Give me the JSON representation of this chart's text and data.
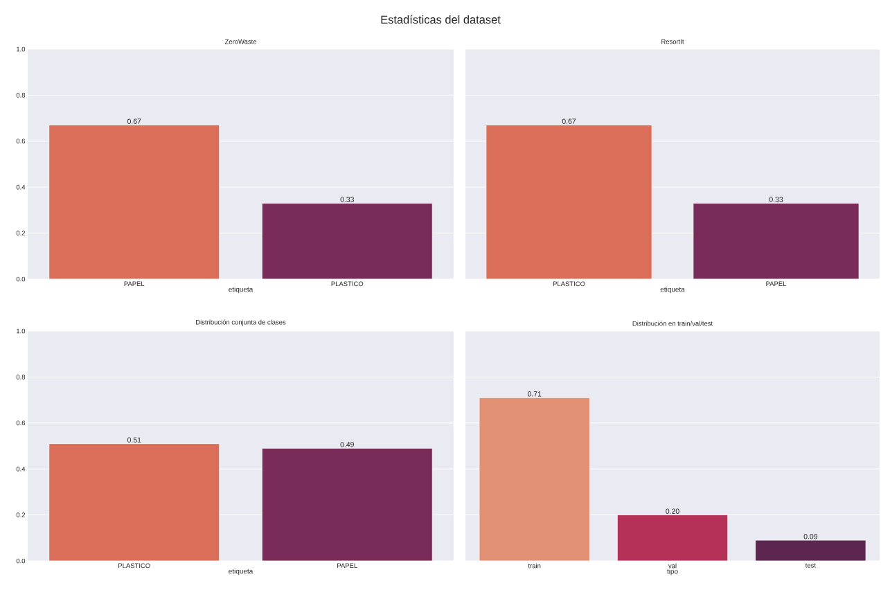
{
  "chart_data": [
    {
      "type": "bar",
      "title": "ZeroWaste",
      "xlabel": "etiqueta",
      "categories": [
        "PAPEL",
        "PLASTICO"
      ],
      "values": [
        0.67,
        0.33
      ],
      "colors": [
        "#db6e59",
        "#782c57"
      ],
      "value_labels": [
        "0.67",
        "0.33"
      ],
      "ylim": [
        0,
        1
      ],
      "yticks": [
        {
          "value": 0,
          "label": "0.0"
        },
        {
          "value": 0.2,
          "label": "0.2"
        },
        {
          "value": 0.4,
          "label": "0.4"
        },
        {
          "value": 0.6,
          "label": "0.6"
        },
        {
          "value": 0.8,
          "label": "0.8"
        },
        {
          "value": 1,
          "label": "1.0"
        }
      ],
      "grid": "y",
      "annotations": [
        "Estadísticas del dataset"
      ]
    },
    {
      "type": "bar",
      "title": "ResortIt",
      "xlabel": "etiqueta",
      "categories": [
        "PLASTICO",
        "PAPEL"
      ],
      "values": [
        0.67,
        0.33
      ],
      "colors": [
        "#db6e59",
        "#782c57"
      ],
      "value_labels": [
        "0.67",
        "0.33"
      ],
      "ylim": [
        0,
        1
      ],
      "yticks": [
        0,
        0.2,
        0.4,
        0.6,
        0.8,
        1
      ],
      "grid": "y",
      "tick_labels": "x"
    },
    {
      "type": "bar",
      "title": "Distribución conjunta de clases",
      "xlabel": "etiqueta",
      "categories": [
        "PLASTICO",
        "PAPEL"
      ],
      "values": [
        0.51,
        0.49
      ],
      "colors": [
        "#db6e59",
        "#782c57"
      ],
      "value_labels": [
        "0.51",
        "0.49"
      ],
      "ylim": [
        0,
        1
      ],
      "yticks": [
        {
          "value": 0,
          "label": "0.0"
        },
        {
          "value": 0.2,
          "label": "0.2"
        },
        {
          "value": 0.4,
          "label": "0.4"
        },
        {
          "value": 0.6,
          "label": "0.6"
        },
        {
          "value": 0.8,
          "label": "0.8"
        },
        {
          "value": 1,
          "label": "1.0"
        }
      ],
      "grid": "y"
    },
    {
      "type": "bar",
      "title": "Distribución en train/val/test",
      "xlabel": "tipo",
      "categories": [
        "train",
        "val",
        "test"
      ],
      "values": [
        0.71,
        0.2,
        0.09
      ],
      "colors": [
        "#e19073",
        "#b53157",
        "#5c2650"
      ],
      "value_labels": [
        "0.71",
        "0.20",
        "0.09"
      ],
      "ylim": [
        0,
        1
      ],
      "yticks": [
        0,
        0.2,
        0.4,
        0.6,
        0.8,
        1
      ],
      "grid": "y",
      "tick_labels": "x"
    }
  ]
}
